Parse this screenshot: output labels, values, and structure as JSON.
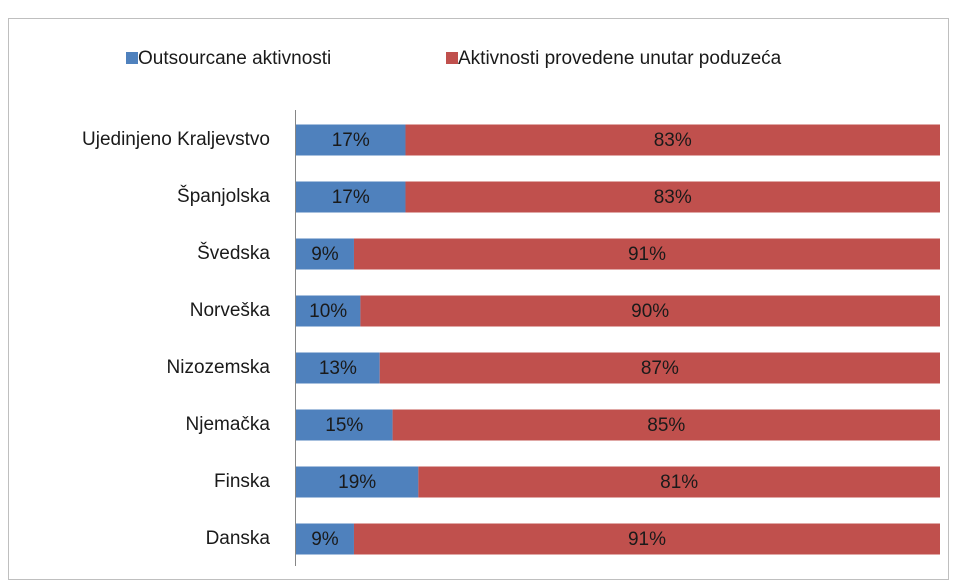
{
  "chart_data": {
    "type": "stacked_bar_horizontal",
    "categories": [
      "Ujedinjeno Kraljevstvo",
      "Španjolska",
      "Švedska",
      "Norveška",
      "Nizozemska",
      "Njemačka",
      "Finska",
      "Danska"
    ],
    "series": [
      {
        "name": "Outsourcane aktivnosti",
        "color": "#4f81bd",
        "values": [
          17,
          17,
          9,
          10,
          13,
          15,
          19,
          9
        ],
        "value_labels": [
          "17%",
          "17%",
          "9%",
          "10%",
          "13%",
          "15%",
          "19%",
          "9%"
        ]
      },
      {
        "name": "Aktivnosti provedene unutar poduzeća",
        "color": "#c0504d",
        "values": [
          83,
          83,
          91,
          90,
          87,
          85,
          81,
          91
        ],
        "value_labels": [
          "83%",
          "83%",
          "91%",
          "90%",
          "87%",
          "85%",
          "81%",
          "91%"
        ]
      }
    ],
    "xlim": [
      0,
      100
    ],
    "legend": "top"
  }
}
